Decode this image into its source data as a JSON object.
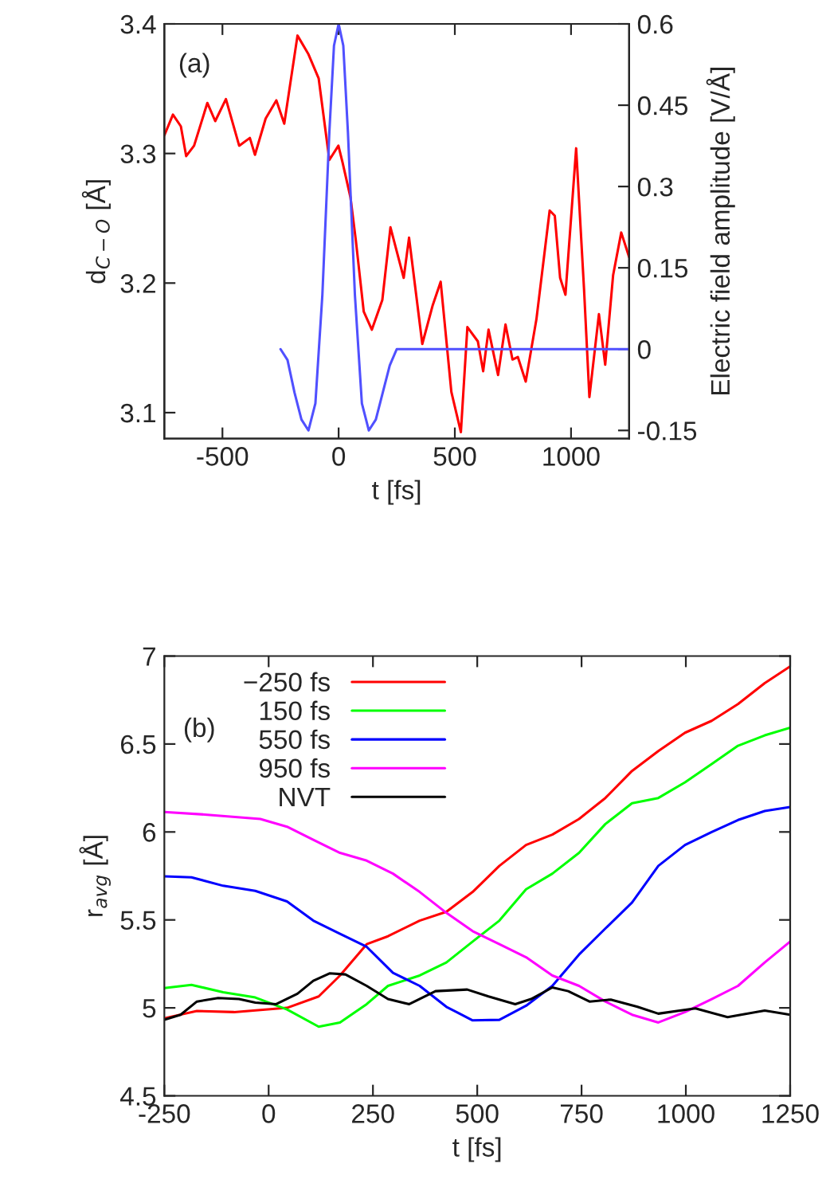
{
  "chart_data": [
    {
      "type": "line",
      "xlabel": "t [fs]",
      "ylabel": "d$_{C−O}$ [Å]",
      "y2label": "Electric field amplitude [V/Å]",
      "annotations": [
        "(a)"
      ],
      "xlim": [
        -750,
        1250
      ],
      "xticks": [
        -500,
        0,
        500,
        1000
      ],
      "ylim": [
        3.08,
        3.4
      ],
      "yticks": [
        3.1,
        3.2,
        3.3,
        3.4
      ],
      "y2lim": [
        -0.165,
        0.6
      ],
      "y2ticks": [
        -0.15,
        0,
        0.15,
        0.3,
        0.45,
        0.6
      ],
      "grid": false,
      "legend": false,
      "series": [
        {
          "color": "#ff0000",
          "x": [
            -750,
            -713,
            -679,
            -656,
            -622,
            -565,
            -531,
            -485,
            -428,
            -382,
            -360,
            -314,
            -268,
            -234,
            -177,
            -131,
            -86,
            -40,
            -1,
            17,
            51,
            74,
            108,
            143,
            188,
            223,
            280,
            303,
            360,
            405,
            439,
            485,
            526,
            554,
            599,
            622,
            645,
            686,
            718,
            748,
            771,
            805,
            851,
            908,
            930,
            953,
            976,
            1022,
            1056,
            1079,
            1120,
            1147,
            1181,
            1216,
            1250
          ],
          "values": [
            3.314,
            3.33,
            3.321,
            3.298,
            3.306,
            3.339,
            3.325,
            3.342,
            3.306,
            3.312,
            3.299,
            3.327,
            3.341,
            3.323,
            3.391,
            3.377,
            3.358,
            3.295,
            3.306,
            3.293,
            3.266,
            3.233,
            3.178,
            3.164,
            3.187,
            3.243,
            3.204,
            3.235,
            3.153,
            3.183,
            3.201,
            3.116,
            3.085,
            3.166,
            3.155,
            3.132,
            3.164,
            3.129,
            3.168,
            3.141,
            3.143,
            3.124,
            3.172,
            3.256,
            3.252,
            3.204,
            3.191,
            3.304,
            3.195,
            3.112,
            3.176,
            3.137,
            3.206,
            3.239,
            3.22
          ]
        },
        {
          "color": "#5050ff",
          "axis": "y2",
          "x": [
            -250,
            -220,
            -190,
            -160,
            -130,
            -100,
            -70,
            -40,
            -20,
            0,
            20,
            40,
            70,
            100,
            130,
            160,
            190,
            220,
            250,
            300,
            1250
          ],
          "values": [
            0.0,
            -0.02,
            -0.08,
            -0.13,
            -0.15,
            -0.1,
            0.1,
            0.4,
            0.56,
            0.6,
            0.56,
            0.4,
            0.1,
            -0.1,
            -0.15,
            -0.13,
            -0.08,
            -0.03,
            0.0,
            0.0,
            0.0
          ]
        }
      ]
    },
    {
      "type": "line",
      "xlabel": "t [fs]",
      "ylabel": "r$_{avg}$ [Å]",
      "annotations": [
        "(b)"
      ],
      "xlim": [
        -250,
        1250
      ],
      "xticks": [
        -250,
        0,
        250,
        500,
        750,
        1000,
        1250
      ],
      "ylim": [
        4.5,
        7
      ],
      "yticks": [
        4.5,
        5,
        5.5,
        6,
        6.5,
        7
      ],
      "grid": false,
      "legend": "top left",
      "series": [
        {
          "name": "−250 fs",
          "color": "#ff0000",
          "x": [
            -250,
            -172,
            -83,
            44,
            120,
            171,
            235,
            286,
            362,
            426,
            489,
            553,
            617,
            680,
            744,
            807,
            871,
            934,
            998,
            1062,
            1125,
            1189,
            1250
          ],
          "values": [
            4.941,
            4.982,
            4.976,
            5.0,
            5.065,
            5.184,
            5.362,
            5.407,
            5.496,
            5.546,
            5.659,
            5.807,
            5.926,
            5.985,
            6.074,
            6.193,
            6.347,
            6.46,
            6.564,
            6.632,
            6.727,
            6.846,
            6.941
          ]
        },
        {
          "name": "150 fs",
          "color": "#00ff00",
          "x": [
            -250,
            -185,
            -109,
            -32,
            44,
            120,
            171,
            235,
            286,
            362,
            426,
            489,
            553,
            617,
            680,
            744,
            807,
            871,
            934,
            998,
            1062,
            1125,
            1189,
            1250
          ],
          "values": [
            5.113,
            5.131,
            5.089,
            5.059,
            4.991,
            4.893,
            4.917,
            5.021,
            5.125,
            5.184,
            5.258,
            5.377,
            5.496,
            5.674,
            5.763,
            5.881,
            6.045,
            6.163,
            6.193,
            6.282,
            6.386,
            6.49,
            6.549,
            6.593
          ]
        },
        {
          "name": "550 fs",
          "color": "#0000ff",
          "x": [
            -250,
            -185,
            -109,
            -32,
            44,
            107,
            171,
            235,
            298,
            362,
            426,
            489,
            553,
            617,
            680,
            744,
            807,
            871,
            934,
            998,
            1062,
            1125,
            1189,
            1250
          ],
          "values": [
            5.748,
            5.742,
            5.694,
            5.665,
            5.605,
            5.496,
            5.421,
            5.347,
            5.199,
            5.125,
            5.006,
            4.929,
            4.932,
            5.012,
            5.125,
            5.303,
            5.451,
            5.599,
            5.807,
            5.926,
            6.0,
            6.068,
            6.119,
            6.142
          ]
        },
        {
          "name": "950 fs",
          "color": "#ff00ff",
          "x": [
            -250,
            -147,
            -20,
            44,
            107,
            171,
            235,
            298,
            362,
            426,
            489,
            553,
            617,
            680,
            744,
            807,
            871,
            934,
            998,
            1062,
            1125,
            1189,
            1250
          ],
          "values": [
            6.113,
            6.098,
            6.074,
            6.03,
            5.955,
            5.881,
            5.837,
            5.763,
            5.659,
            5.54,
            5.436,
            5.362,
            5.288,
            5.184,
            5.125,
            5.036,
            4.961,
            4.917,
            4.976,
            5.05,
            5.125,
            5.258,
            5.377
          ]
        },
        {
          "name": "NVT",
          "color": "#000000",
          "x": [
            -250,
            -211,
            -172,
            -121,
            -71,
            -32,
            18,
            69,
            107,
            146,
            184,
            235,
            286,
            337,
            400,
            476,
            527,
            591,
            629,
            680,
            718,
            769,
            820,
            884,
            934,
            1023,
            1100,
            1189,
            1250
          ],
          "values": [
            4.932,
            4.961,
            5.036,
            5.056,
            5.05,
            5.03,
            5.021,
            5.08,
            5.154,
            5.196,
            5.19,
            5.125,
            5.05,
            5.021,
            5.095,
            5.104,
            5.065,
            5.021,
            5.05,
            5.116,
            5.095,
            5.036,
            5.047,
            5.006,
            4.967,
            4.997,
            4.947,
            4.985,
            4.961
          ]
        }
      ]
    }
  ]
}
